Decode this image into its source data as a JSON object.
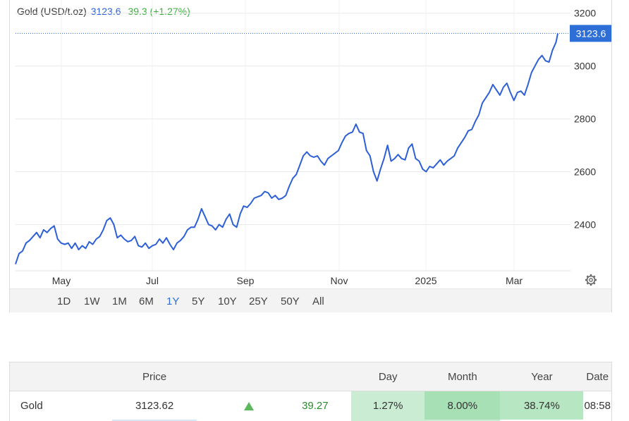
{
  "header": {
    "name": "Gold (USD/t.oz)",
    "price": "3123.6",
    "change": "39.3 (+1.27%)"
  },
  "colors": {
    "line": "#2d5fd6",
    "label_bg": "#2d6fd6",
    "up": "#5cb85c"
  },
  "chart_data": {
    "type": "line",
    "series": [
      {
        "values": [
          [
            0,
            2250
          ],
          [
            2,
            2290
          ],
          [
            4,
            2300
          ],
          [
            6,
            2330
          ],
          [
            8,
            2340
          ],
          [
            10,
            2355
          ],
          [
            12,
            2370
          ],
          [
            14,
            2350
          ],
          [
            16,
            2380
          ],
          [
            18,
            2370
          ],
          [
            20,
            2385
          ],
          [
            22,
            2395
          ],
          [
            24,
            2345
          ],
          [
            26,
            2330
          ],
          [
            28,
            2325
          ],
          [
            30,
            2330
          ],
          [
            32,
            2310
          ],
          [
            34,
            2330
          ],
          [
            36,
            2305
          ],
          [
            38,
            2320
          ],
          [
            40,
            2310
          ],
          [
            42,
            2335
          ],
          [
            44,
            2325
          ],
          [
            46,
            2345
          ],
          [
            48,
            2355
          ],
          [
            50,
            2380
          ],
          [
            52,
            2415
          ],
          [
            54,
            2425
          ],
          [
            56,
            2400
          ],
          [
            58,
            2350
          ],
          [
            60,
            2360
          ],
          [
            62,
            2345
          ],
          [
            64,
            2335
          ],
          [
            66,
            2340
          ],
          [
            68,
            2355
          ],
          [
            70,
            2320
          ],
          [
            72,
            2315
          ],
          [
            74,
            2330
          ],
          [
            76,
            2310
          ],
          [
            78,
            2320
          ],
          [
            80,
            2325
          ],
          [
            82,
            2345
          ],
          [
            84,
            2330
          ],
          [
            86,
            2350
          ],
          [
            88,
            2325
          ],
          [
            90,
            2305
          ],
          [
            92,
            2330
          ],
          [
            94,
            2340
          ],
          [
            96,
            2355
          ],
          [
            98,
            2380
          ],
          [
            100,
            2390
          ],
          [
            102,
            2390
          ],
          [
            104,
            2420
          ],
          [
            106,
            2460
          ],
          [
            108,
            2430
          ],
          [
            110,
            2400
          ],
          [
            112,
            2395
          ],
          [
            114,
            2380
          ],
          [
            116,
            2400
          ],
          [
            118,
            2390
          ],
          [
            120,
            2420
          ],
          [
            122,
            2440
          ],
          [
            124,
            2400
          ],
          [
            126,
            2390
          ],
          [
            128,
            2440
          ],
          [
            130,
            2470
          ],
          [
            132,
            2465
          ],
          [
            134,
            2480
          ],
          [
            136,
            2500
          ],
          [
            138,
            2505
          ],
          [
            140,
            2510
          ],
          [
            142,
            2525
          ],
          [
            144,
            2520
          ],
          [
            146,
            2500
          ],
          [
            148,
            2510
          ],
          [
            150,
            2495
          ],
          [
            152,
            2500
          ],
          [
            154,
            2510
          ],
          [
            156,
            2545
          ],
          [
            158,
            2575
          ],
          [
            160,
            2590
          ],
          [
            162,
            2625
          ],
          [
            164,
            2660
          ],
          [
            166,
            2675
          ],
          [
            168,
            2660
          ],
          [
            170,
            2655
          ],
          [
            172,
            2660
          ],
          [
            174,
            2640
          ],
          [
            176,
            2625
          ],
          [
            178,
            2650
          ],
          [
            180,
            2660
          ],
          [
            182,
            2670
          ],
          [
            184,
            2680
          ],
          [
            186,
            2710
          ],
          [
            188,
            2735
          ],
          [
            190,
            2745
          ],
          [
            192,
            2750
          ],
          [
            194,
            2780
          ],
          [
            196,
            2750
          ],
          [
            198,
            2745
          ],
          [
            200,
            2680
          ],
          [
            202,
            2660
          ],
          [
            204,
            2600
          ],
          [
            206,
            2565
          ],
          [
            208,
            2610
          ],
          [
            210,
            2650
          ],
          [
            212,
            2700
          ],
          [
            214,
            2640
          ],
          [
            216,
            2650
          ],
          [
            218,
            2665
          ],
          [
            220,
            2650
          ],
          [
            222,
            2645
          ],
          [
            224,
            2690
          ],
          [
            226,
            2705
          ],
          [
            228,
            2650
          ],
          [
            230,
            2640
          ],
          [
            232,
            2610
          ],
          [
            234,
            2600
          ],
          [
            236,
            2620
          ],
          [
            238,
            2615
          ],
          [
            240,
            2630
          ],
          [
            242,
            2645
          ],
          [
            244,
            2625
          ],
          [
            246,
            2640
          ],
          [
            248,
            2650
          ],
          [
            250,
            2660
          ],
          [
            252,
            2690
          ],
          [
            254,
            2710
          ],
          [
            256,
            2730
          ],
          [
            258,
            2755
          ],
          [
            260,
            2760
          ],
          [
            262,
            2790
          ],
          [
            264,
            2815
          ],
          [
            266,
            2860
          ],
          [
            268,
            2880
          ],
          [
            270,
            2900
          ],
          [
            272,
            2930
          ],
          [
            274,
            2910
          ],
          [
            276,
            2890
          ],
          [
            278,
            2920
          ],
          [
            280,
            2935
          ],
          [
            282,
            2900
          ],
          [
            284,
            2870
          ],
          [
            286,
            2900
          ],
          [
            288,
            2905
          ],
          [
            290,
            2890
          ],
          [
            292,
            2930
          ],
          [
            294,
            2975
          ],
          [
            296,
            3000
          ],
          [
            298,
            3025
          ],
          [
            300,
            3040
          ],
          [
            302,
            3020
          ],
          [
            304,
            3015
          ],
          [
            306,
            3060
          ],
          [
            308,
            3090
          ],
          [
            309,
            3123.6
          ]
        ]
      }
    ],
    "x_ticks": [
      "May",
      "Jul",
      "Sep",
      "Nov",
      "2025",
      "Mar"
    ],
    "y_ticks": [
      2400,
      2600,
      2800,
      3000,
      3200
    ],
    "ylim": [
      2225,
      3250
    ],
    "last_value_label": "3123.6",
    "grid": true,
    "y_axis_side": "right"
  },
  "range_buttons": [
    "1D",
    "1W",
    "1M",
    "6M",
    "1Y",
    "5Y",
    "10Y",
    "25Y",
    "50Y",
    "All"
  ],
  "range_active": "1Y",
  "table": {
    "headers": [
      "",
      "Price",
      "",
      "",
      "Day",
      "Month",
      "Year",
      "Date"
    ],
    "rows": [
      {
        "name": "Gold",
        "price": "3123.62",
        "change": "39.27",
        "day": "1.27%",
        "month": "8.00%",
        "year": "38.74%",
        "date": "08:58"
      }
    ]
  }
}
